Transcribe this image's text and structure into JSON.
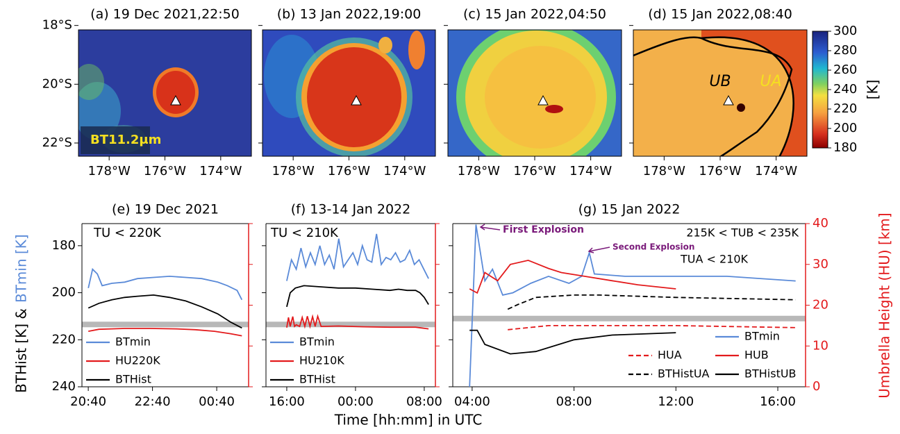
{
  "figure": {
    "ylabel_black": "BTHist [K] &",
    "ylabel_blue": "BTmin [K]",
    "y2label": "Umbrella Height (HU) [km]",
    "xlabel": "Time [hh:mm] in UTC"
  },
  "chart_data": [
    {
      "type": "image",
      "title": "(a) 19 Dec 2021,22:50",
      "xlim": [
        -179.1,
        -172.9
      ],
      "ylim": [
        -22.45,
        -18.15
      ],
      "xticks": [
        {
          "value": -178,
          "label": "178°W"
        },
        {
          "value": -176,
          "label": "176°W"
        },
        {
          "value": -174,
          "label": "174°W"
        }
      ],
      "yticks": [
        {
          "value": -18,
          "label": "18°S"
        },
        {
          "value": -20,
          "label": "20°S"
        },
        {
          "value": -22,
          "label": "22°S"
        }
      ],
      "ytick_labels": true,
      "annotations": [
        "BT11.2μm"
      ]
    },
    {
      "type": "image",
      "title": "(b) 13 Jan 2022,19:00",
      "xlim": [
        -179.1,
        -172.9
      ],
      "ylim": [
        -22.45,
        -18.15
      ],
      "xticks": [
        {
          "value": -178,
          "label": "178°W"
        },
        {
          "value": -176,
          "label": "176°W"
        },
        {
          "value": -174,
          "label": "174°W"
        }
      ],
      "yticks": [
        {
          "value": -18,
          "label": "18°S"
        },
        {
          "value": -20,
          "label": "20°S"
        },
        {
          "value": -22,
          "label": "22°S"
        }
      ],
      "ytick_labels": false
    },
    {
      "type": "image",
      "title": "(c) 15 Jan 2022,04:50",
      "xlim": [
        -179.1,
        -172.9
      ],
      "ylim": [
        -22.45,
        -18.15
      ],
      "xticks": [
        {
          "value": -178,
          "label": "178°W"
        },
        {
          "value": -176,
          "label": "176°W"
        },
        {
          "value": -174,
          "label": "174°W"
        }
      ],
      "yticks": [
        {
          "value": -18,
          "label": "18°S"
        },
        {
          "value": -20,
          "label": "20°S"
        },
        {
          "value": -22,
          "label": "22°S"
        }
      ],
      "ytick_labels": false
    },
    {
      "type": "image",
      "title": "(d) 15 Jan 2022,08:40",
      "xlim": [
        -179.1,
        -172.9
      ],
      "ylim": [
        -22.45,
        -18.15
      ],
      "xticks": [
        {
          "value": -178,
          "label": "178°W"
        },
        {
          "value": -176,
          "label": "176°W"
        },
        {
          "value": -174,
          "label": "174°W"
        }
      ],
      "yticks": [
        {
          "value": -18,
          "label": "18°S"
        },
        {
          "value": -20,
          "label": "20°S"
        },
        {
          "value": -22,
          "label": "22°S"
        }
      ],
      "ytick_labels": false,
      "annotations": [
        "UB",
        "UA"
      ]
    },
    {
      "type": "colorbar",
      "ylim": [
        180,
        300
      ],
      "yticks": [
        180,
        200,
        220,
        240,
        260,
        280,
        300
      ],
      "label": "[K]"
    },
    {
      "type": "line",
      "title": "(e) 19 Dec 2021",
      "annotations": [
        "TU < 220K"
      ],
      "xlim": [
        20.47,
        25.66
      ],
      "xticks": [
        {
          "value": 20.667,
          "label": "20:40"
        },
        {
          "value": 22.667,
          "label": "22:40"
        },
        {
          "value": 24.667,
          "label": "00:40"
        }
      ],
      "ylim": [
        240,
        170.6
      ],
      "yticks": [
        180,
        200,
        220,
        240
      ],
      "ytick_labels": true,
      "y2lim": [
        0,
        40
      ],
      "y2ticks": [
        0,
        10,
        20,
        30,
        40
      ],
      "y2tick_labels": false,
      "reference_line": 213.5,
      "legend": "lower left",
      "series": [
        {
          "name": "BTmin",
          "color": "#5a8ad8",
          "x": [
            20.67,
            20.8,
            20.95,
            21.1,
            21.4,
            21.8,
            22.2,
            22.7,
            23.2,
            23.7,
            24.2,
            24.7,
            25.0,
            25.3,
            25.45
          ],
          "values": [
            198,
            190,
            192,
            197,
            196,
            195.5,
            194,
            193.5,
            193,
            193.5,
            194,
            195.5,
            197,
            199,
            203
          ]
        },
        {
          "name": "HU220K",
          "color": "#e31a1c",
          "axis": "y2",
          "x": [
            20.67,
            21,
            21.4,
            21.8,
            22.6,
            23.4,
            24,
            24.6,
            25.1,
            25.45
          ],
          "values": [
            13.6,
            14.1,
            14.2,
            14.3,
            14.3,
            14.2,
            14.0,
            13.6,
            13.0,
            12.5
          ]
        },
        {
          "name": "BTHist",
          "color": "#000000",
          "x": [
            20.67,
            21,
            21.4,
            21.8,
            22.2,
            22.7,
            23.2,
            23.7,
            24.2,
            24.7,
            25.1,
            25.45
          ],
          "values": [
            206.5,
            204.5,
            203,
            202,
            201.5,
            201,
            202,
            203.5,
            206,
            209,
            212.5,
            215
          ]
        }
      ]
    },
    {
      "type": "line",
      "title": "(f) 13-14 Jan 2022",
      "annotations": [
        "TU < 210K"
      ],
      "xlim": [
        13.58,
        33.3
      ],
      "xticks": [
        {
          "value": 16,
          "label": "16:00"
        },
        {
          "value": 24,
          "label": "00:00"
        },
        {
          "value": 32,
          "label": "08:00"
        }
      ],
      "ylim": [
        240,
        170.6
      ],
      "yticks": [
        180,
        200,
        220,
        240
      ],
      "ytick_labels": false,
      "y2lim": [
        0,
        40
      ],
      "y2ticks": [
        0,
        10,
        20,
        30,
        40
      ],
      "y2tick_labels": false,
      "reference_line": 213.5,
      "legend": "lower left",
      "series": [
        {
          "name": "BTmin",
          "color": "#5a8ad8",
          "x": [
            16,
            16.55,
            17.1,
            17.65,
            18.2,
            18.75,
            19.3,
            19.85,
            20.4,
            20.95,
            21.5,
            22.05,
            22.6,
            23.15,
            23.7,
            24.25,
            24.8,
            25.35,
            25.9,
            26.45,
            27,
            27.55,
            28.1,
            28.65,
            29.2,
            29.75,
            30.3,
            30.85,
            31.4,
            31.95,
            32.5
          ],
          "values": [
            195,
            186,
            190,
            181,
            189,
            183,
            188,
            180,
            188,
            184,
            190,
            177,
            189,
            186,
            183,
            188,
            180,
            186,
            187,
            175,
            188,
            185,
            186,
            183,
            187,
            186,
            182,
            188,
            186,
            190,
            194
          ]
        },
        {
          "name": "HU210K",
          "color": "#e31a1c",
          "axis": "y2",
          "x": [
            16,
            16.2,
            16.4,
            16.7,
            16.9,
            17.1,
            17.5,
            17.8,
            18.1,
            18.4,
            18.7,
            19,
            19.3,
            19.6,
            20,
            22,
            25,
            28,
            31,
            32.5
          ],
          "values": [
            14.5,
            17,
            14.8,
            17.2,
            14.8,
            15.2,
            14.8,
            17,
            14.8,
            17.3,
            14.8,
            17.2,
            14.8,
            17.3,
            14.8,
            14.9,
            14.7,
            14.6,
            14.6,
            14.2
          ]
        },
        {
          "name": "BTHist",
          "color": "#000000",
          "x": [
            16,
            16.4,
            17,
            18,
            20,
            22,
            24,
            26,
            28,
            29,
            30,
            31,
            31.5,
            32,
            32.5
          ],
          "values": [
            206,
            200,
            198,
            197,
            197.5,
            198,
            198,
            198.5,
            199,
            198.5,
            199,
            199,
            200,
            202,
            205
          ]
        }
      ]
    },
    {
      "type": "line",
      "title": "(g) 15 Jan 2022",
      "annotations": [
        "First Explosion",
        "Second Explosion",
        "215K < TUB < 235K",
        "TUA < 210K"
      ],
      "xlim": [
        3.24,
        17.09
      ],
      "xticks": [
        {
          "value": 4,
          "label": "04:00"
        },
        {
          "value": 8,
          "label": "08:00"
        },
        {
          "value": 12,
          "label": "12:00"
        },
        {
          "value": 16,
          "label": "16:00"
        }
      ],
      "ylim": [
        240,
        170.6
      ],
      "yticks": [
        180,
        200,
        220,
        240
      ],
      "ytick_labels": false,
      "y2lim": [
        0,
        40
      ],
      "y2ticks": [
        0,
        10,
        20,
        30,
        40
      ],
      "y2tick_labels": true,
      "reference_line": 211,
      "legend": "lower right",
      "legend_columns": 2,
      "series": [
        {
          "name": "BTmin",
          "color": "#5a8ad8",
          "x": [
            3.9,
            4.15,
            4.5,
            4.8,
            5.2,
            5.6,
            6.3,
            7,
            7.8,
            8.3,
            8.6,
            8.8,
            10,
            14,
            16.7
          ],
          "values": [
            240,
            171,
            195,
            190,
            201,
            200,
            196,
            193,
            196,
            193,
            183,
            192,
            193,
            193,
            195
          ]
        },
        {
          "name": "HUB",
          "color": "#e31a1c",
          "axis": "y2",
          "x": [
            3.9,
            4.2,
            4.5,
            5,
            5.5,
            6.2,
            7,
            7.5,
            8.5,
            9.5,
            10.5,
            12
          ],
          "values": [
            24,
            23,
            28,
            26,
            30,
            31,
            29,
            28,
            27,
            26,
            25,
            24
          ]
        },
        {
          "name": "BTHistUB",
          "color": "#000000",
          "x": [
            3.9,
            4.2,
            4.5,
            5.5,
            6.5,
            8,
            9.5,
            12
          ],
          "values": [
            216,
            216,
            222,
            226,
            225,
            220,
            218,
            217
          ]
        },
        {
          "name": "HUA",
          "color": "#e31a1c",
          "axis": "y2",
          "dash": true,
          "x": [
            5.4,
            7,
            9,
            12,
            16.7
          ],
          "values": [
            14,
            15,
            15,
            15,
            14.5
          ]
        },
        {
          "name": "BTHistUA",
          "color": "#000000",
          "dash": true,
          "x": [
            5.4,
            5.8,
            6.5,
            8,
            9,
            12,
            16.7
          ],
          "values": [
            207,
            205,
            202,
            201,
            201,
            202,
            203
          ]
        }
      ]
    }
  ]
}
